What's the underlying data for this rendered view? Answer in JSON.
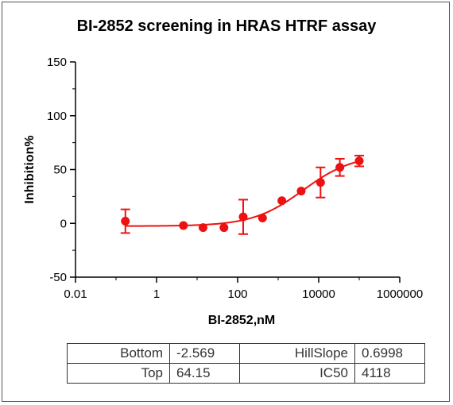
{
  "chart_data": {
    "type": "scatter",
    "title": "BI-2852 screening in HRAS HTRF assay",
    "xlabel": "BI-2852,nM",
    "ylabel": "Inhibition%",
    "xscale": "log",
    "xlim": [
      0.01,
      1000000
    ],
    "ylim": [
      -50,
      150
    ],
    "x_ticks": [
      "0.01",
      "1",
      "100",
      "10000",
      "1000000"
    ],
    "y_ticks": [
      "-50",
      "0",
      "50",
      "100",
      "150"
    ],
    "color": "#ee1111",
    "series": [
      {
        "x": [
          0.17,
          4.6,
          14,
          46,
          137,
          411,
          1235,
          3700,
          11100,
          33300,
          100000
        ],
        "y": [
          2,
          -2,
          -4,
          -4,
          6,
          5,
          21,
          30,
          38,
          52,
          58
        ],
        "error": [
          11,
          0,
          0,
          0,
          16,
          0,
          0,
          0,
          14,
          8,
          5
        ]
      }
    ],
    "fit": {
      "bottom": -2.569,
      "top": 64.15,
      "ic50": 4118,
      "hillslope": 0.6998,
      "x_range": [
        0.17,
        100000
      ]
    },
    "table": [
      [
        "Bottom",
        "-2.569",
        "HillSlope",
        "0.6998"
      ],
      [
        "Top",
        "64.15",
        "IC50",
        "4118"
      ]
    ]
  }
}
